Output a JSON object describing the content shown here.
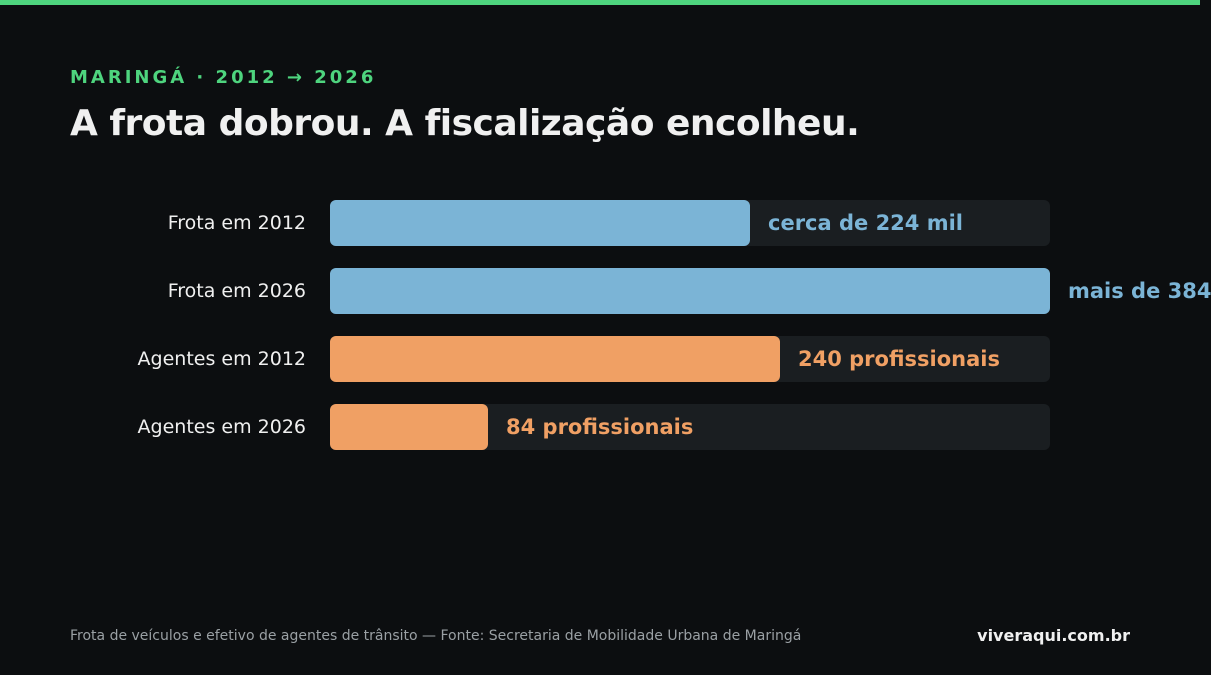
{
  "header": {
    "kicker": "MARINGÁ · 2012 → 2026",
    "title": "A frota dobrou. A fiscalização encolheu."
  },
  "footer": {
    "source": "Frota de veículos e efetivo de agentes de trânsito — Fonte: Secretaria de Mobilidade Urbana de Maringá",
    "brand": "viveraqui.com.br"
  },
  "colors": {
    "accent": "#4ed47e",
    "fleet": "#7bb4d6",
    "agents": "#f0a064",
    "track": "#1a1e21",
    "background": "#0c0e10"
  },
  "chart_data": {
    "type": "bar",
    "orientation": "horizontal",
    "grid": false,
    "rows": [
      {
        "category": "Frota em 2012",
        "value": 224000,
        "value_label": "cerca de 224 mil",
        "group": "fleet",
        "scale_max": 384000
      },
      {
        "category": "Frota em 2026",
        "value": 384000,
        "value_label": "mais de 384",
        "group": "fleet",
        "scale_max": 384000
      },
      {
        "category": "Agentes em 2012",
        "value": 240,
        "value_label": "240 profissionais",
        "group": "agents",
        "scale_max": 384
      },
      {
        "category": "Agentes em 2026",
        "value": 84,
        "value_label": "84 profissionais",
        "group": "agents",
        "scale_max": 384
      }
    ]
  }
}
